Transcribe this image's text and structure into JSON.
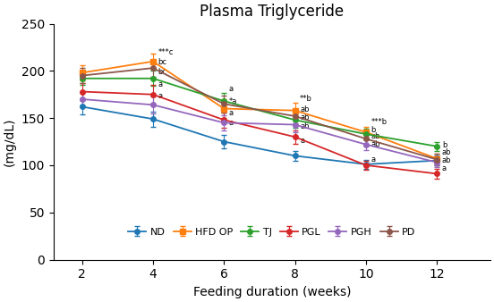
{
  "chart_data": {
    "type": "line",
    "title": "Plasma Triglyceride",
    "x_label": "Feeding duration (weeks)",
    "y_label": "(mg/dL)",
    "x": [
      2,
      4,
      6,
      8,
      10,
      12
    ],
    "xlim": [
      1.2,
      13.5
    ],
    "ylim": [
      0,
      250
    ],
    "xticks": [
      2,
      4,
      6,
      8,
      10,
      12
    ],
    "yticks": [
      0,
      50,
      100,
      150,
      200,
      250
    ],
    "grid": false,
    "legend": "lower center",
    "series": [
      {
        "name": "ND",
        "marker": "circle",
        "values": [
          162,
          149,
          125,
          110,
          101,
          105
        ],
        "errors": [
          8,
          8,
          7,
          5,
          5,
          5
        ]
      },
      {
        "name": "HFD OP",
        "marker": "square",
        "values": [
          198,
          210,
          160,
          158,
          135,
          107
        ],
        "errors": [
          8,
          8,
          10,
          8,
          6,
          5
        ]
      },
      {
        "name": "TJ",
        "marker": "circle",
        "values": [
          192,
          192,
          168,
          148,
          133,
          120
        ],
        "errors": [
          7,
          8,
          9,
          8,
          6,
          5
        ]
      },
      {
        "name": "PGL",
        "marker": "circle",
        "values": [
          178,
          175,
          148,
          130,
          100,
          91
        ],
        "errors": [
          9,
          10,
          8,
          7,
          5,
          5
        ]
      },
      {
        "name": "PGH",
        "marker": "circle",
        "values": [
          170,
          164,
          145,
          143,
          122,
          103
        ],
        "errors": [
          8,
          9,
          8,
          8,
          6,
          5
        ]
      },
      {
        "name": "PD",
        "marker": "circle",
        "values": [
          195,
          203,
          165,
          152,
          128,
          106
        ],
        "errors": [
          8,
          9,
          9,
          8,
          7,
          6
        ]
      }
    ],
    "annotations": [
      {
        "text": "***c",
        "x": 4,
        "y": 215
      },
      {
        "text": "bc",
        "x": 4,
        "y": 205
      },
      {
        "text": "bc",
        "x": 4,
        "y": 195
      },
      {
        "text": "a",
        "x": 4,
        "y": 181
      },
      {
        "text": "a",
        "x": 4,
        "y": 169
      },
      {
        "text": "a",
        "x": 6,
        "y": 177
      },
      {
        "text": "*a",
        "x": 6,
        "y": 163
      },
      {
        "text": "a",
        "x": 6,
        "y": 151
      },
      {
        "text": "a",
        "x": 6,
        "y": 141
      },
      {
        "text": "**b",
        "x": 8,
        "y": 166
      },
      {
        "text": "ab",
        "x": 8,
        "y": 155
      },
      {
        "text": "ab",
        "x": 8,
        "y": 146
      },
      {
        "text": "ab",
        "x": 8,
        "y": 137
      },
      {
        "text": "a",
        "x": 8,
        "y": 122
      },
      {
        "text": "***b",
        "x": 10,
        "y": 142
      },
      {
        "text": "b",
        "x": 10,
        "y": 133
      },
      {
        "text": "ab",
        "x": 10,
        "y": 126
      },
      {
        "text": "ab",
        "x": 10,
        "y": 118
      },
      {
        "text": "a",
        "x": 10,
        "y": 102
      },
      {
        "text": "b",
        "x": 12,
        "y": 117
      },
      {
        "text": "ab",
        "x": 12,
        "y": 109
      },
      {
        "text": "ab",
        "x": 12,
        "y": 101
      },
      {
        "text": "a",
        "x": 12,
        "y": 92
      }
    ]
  }
}
